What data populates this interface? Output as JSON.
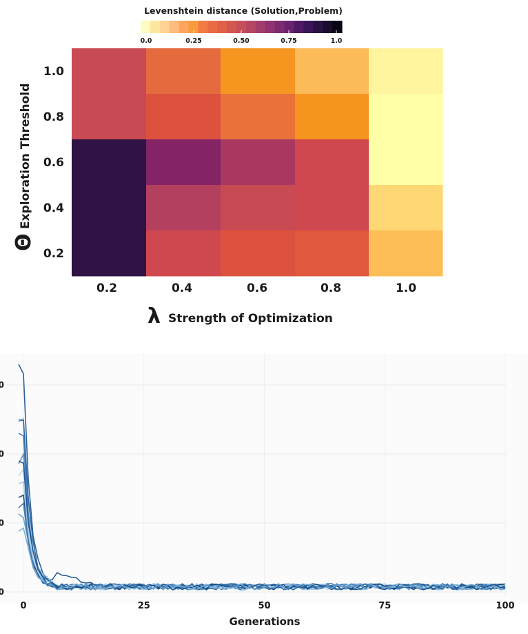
{
  "chart_data": [
    {
      "type": "heatmap",
      "colorbar": {
        "title": "Levenshtein distance (Solution,Problem)",
        "tick_labels": [
          "0.0",
          "0.25",
          "0.50",
          "0.75",
          "1.0"
        ],
        "range": [
          0,
          1
        ],
        "colors": [
          "#fcfdbf",
          "#fde7a0",
          "#fed395",
          "#febd7c",
          "#fca65e",
          "#f99b3b",
          "#f47a43",
          "#ea6c44",
          "#e0614a",
          "#d5584e",
          "#c6505a",
          "#b44663",
          "#a33d6b",
          "#903370",
          "#7c2a72",
          "#6a2270",
          "#4f1a63",
          "#3a1557",
          "#2b1245",
          "#1a0d2e",
          "#0a0613"
        ]
      },
      "x": {
        "label_symbol": "λ",
        "label": "Strength of Optimization",
        "tick_labels": [
          "0.2",
          "0.4",
          "0.6",
          "0.8",
          "1.0"
        ]
      },
      "y": {
        "label_symbol": "Θ",
        "label": "Exploration Threshold",
        "tick_labels": [
          "1.0",
          "0.8",
          "0.6",
          "0.4",
          "0.2"
        ]
      },
      "cell_colors": [
        [
          "#c84a52",
          "#e56a3e",
          "#f6951f",
          "#fbbb58",
          "#fff59e"
        ],
        [
          "#c84a52",
          "#dd523f",
          "#e9713a",
          "#f5951f",
          "#ffffa8"
        ],
        [
          "#301245",
          "#842466",
          "#a83861",
          "#cf474f",
          "#ffffa8"
        ],
        [
          "#301245",
          "#b2405e",
          "#c84a52",
          "#cf474f",
          "#fed875"
        ],
        [
          "#301245",
          "#cf474f",
          "#dd523f",
          "#e0583d",
          "#fdbe57"
        ]
      ]
    },
    {
      "type": "line",
      "xlabel": "Generations",
      "x_ticks": [
        "0",
        "25",
        "50",
        "75",
        "100"
      ],
      "y_tick_labels": [
        "0",
        "0",
        "0",
        "0"
      ],
      "xlim": [
        -3,
        100
      ],
      "ylim": [
        0,
        3
      ],
      "grid": true,
      "series_style": "many overlapping blue runs; sharp drop within first ~5 generations then flat near zero",
      "colors": [
        "#1b4f8a",
        "#2f6fae",
        "#4a8cc4",
        "#8fbcde",
        "#b7d4ea",
        "#0e3b72",
        "#5a9acb",
        "#1f5f9d",
        "#9ec5e3",
        "#316ea8",
        "#144a86",
        "#6ea6d3"
      ]
    }
  ]
}
